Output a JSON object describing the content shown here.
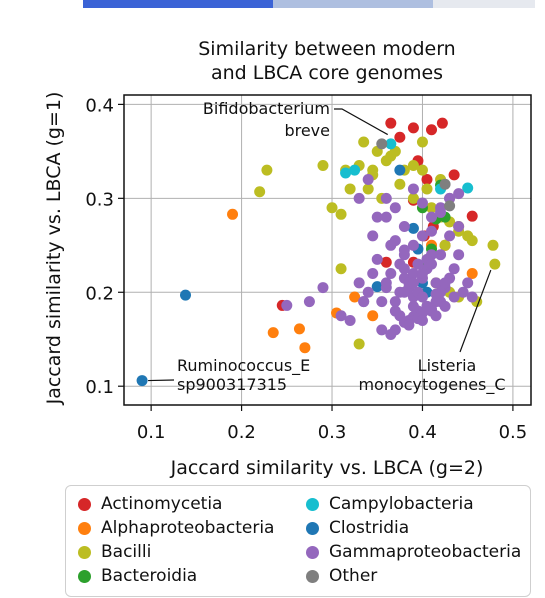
{
  "chart_data": {
    "type": "scatter",
    "title": [
      "Similarity between modern",
      "and LBCA core genomes"
    ],
    "xlabel": "Jaccard similarity vs. LBCA (g=2)",
    "ylabel": "Jaccard similarity vs. LBCA (g=1)",
    "xlim": [
      0.07,
      0.52
    ],
    "ylim": [
      0.08,
      0.41
    ],
    "xticks": [
      0.1,
      0.2,
      0.3,
      0.4,
      0.5
    ],
    "xtick_labels": [
      "0.1",
      "0.2",
      "0.3",
      "0.4",
      "0.5"
    ],
    "yticks": [
      0.1,
      0.2,
      0.3,
      0.4
    ],
    "ytick_labels": [
      "0.1",
      "0.2",
      "0.3",
      "0.4"
    ],
    "grid": true,
    "legend_position": "below",
    "annotations": [
      {
        "lines": [
          "Bifidobacterium",
          "breve"
        ],
        "point": [
          0.366,
          0.37
        ]
      },
      {
        "lines": [
          "Ruminococcus_E",
          "sp900317315"
        ],
        "point": [
          0.09,
          0.106
        ]
      },
      {
        "lines": [
          "Listeria",
          "monocytogenes_C"
        ],
        "point": [
          0.48,
          0.23
        ]
      }
    ],
    "series": [
      {
        "name": "Actinomycetia",
        "color": "#d62728",
        "x": [
          0.365,
          0.39,
          0.41,
          0.422,
          0.375,
          0.395,
          0.435,
          0.455,
          0.39,
          0.425,
          0.36,
          0.402,
          0.412,
          0.39,
          0.405,
          0.245
        ],
        "y": [
          0.38,
          0.375,
          0.373,
          0.38,
          0.365,
          0.34,
          0.325,
          0.281,
          0.232,
          0.25,
          0.232,
          0.26,
          0.27,
          0.298,
          0.32,
          0.186
        ]
      },
      {
        "name": "Alphaproteobacteria",
        "color": "#ff7f0e",
        "x": [
          0.19,
          0.235,
          0.264,
          0.27,
          0.305,
          0.325,
          0.345,
          0.41,
          0.455
        ],
        "y": [
          0.283,
          0.157,
          0.161,
          0.141,
          0.178,
          0.195,
          0.175,
          0.25,
          0.22
        ]
      },
      {
        "name": "Bacilli",
        "color": "#bcbd22",
        "x": [
          0.22,
          0.228,
          0.29,
          0.3,
          0.31,
          0.315,
          0.32,
          0.33,
          0.34,
          0.345,
          0.35,
          0.36,
          0.37,
          0.38,
          0.39,
          0.4,
          0.405,
          0.41,
          0.42,
          0.43,
          0.44,
          0.45,
          0.455,
          0.46,
          0.478,
          0.48,
          0.43,
          0.44,
          0.415,
          0.365,
          0.335,
          0.345,
          0.31,
          0.355,
          0.39,
          0.425,
          0.44,
          0.4,
          0.33,
          0.375,
          0.42
        ],
        "y": [
          0.307,
          0.33,
          0.335,
          0.29,
          0.283,
          0.33,
          0.31,
          0.335,
          0.31,
          0.325,
          0.35,
          0.34,
          0.35,
          0.33,
          0.335,
          0.33,
          0.31,
          0.29,
          0.28,
          0.275,
          0.27,
          0.26,
          0.255,
          0.19,
          0.25,
          0.23,
          0.2,
          0.195,
          0.21,
          0.345,
          0.36,
          0.33,
          0.225,
          0.3,
          0.3,
          0.25,
          0.265,
          0.36,
          0.145,
          0.315,
          0.32
        ]
      },
      {
        "name": "Bacteroidia",
        "color": "#2ca02c",
        "x": [
          0.4,
          0.42,
          0.425,
          0.41,
          0.405,
          0.415
        ],
        "y": [
          0.29,
          0.314,
          0.28,
          0.246,
          0.23,
          0.278
        ]
      },
      {
        "name": "Campylobacteria",
        "color": "#17becf",
        "x": [
          0.365,
          0.315,
          0.325,
          0.45,
          0.42
        ],
        "y": [
          0.358,
          0.327,
          0.33,
          0.311,
          0.31
        ]
      },
      {
        "name": "Clostridia",
        "color": "#1f77b4",
        "x": [
          0.09,
          0.138,
          0.35,
          0.39,
          0.395,
          0.4,
          0.405,
          0.375
        ],
        "y": [
          0.106,
          0.197,
          0.206,
          0.268,
          0.246,
          0.21,
          0.2,
          0.33
        ]
      },
      {
        "name": "Gammaproteobacteria",
        "color": "#9467bd",
        "x": [
          0.25,
          0.275,
          0.29,
          0.31,
          0.32,
          0.33,
          0.335,
          0.34,
          0.345,
          0.35,
          0.355,
          0.36,
          0.365,
          0.37,
          0.375,
          0.38,
          0.385,
          0.39,
          0.395,
          0.4,
          0.405,
          0.41,
          0.415,
          0.42,
          0.425,
          0.43,
          0.435,
          0.44,
          0.445,
          0.45,
          0.455,
          0.36,
          0.37,
          0.38,
          0.39,
          0.4,
          0.41,
          0.42,
          0.43,
          0.375,
          0.385,
          0.395,
          0.405,
          0.415,
          0.365,
          0.38,
          0.39,
          0.4,
          0.41,
          0.42,
          0.37,
          0.38,
          0.39,
          0.4,
          0.41,
          0.385,
          0.395,
          0.405,
          0.415,
          0.425,
          0.36,
          0.345,
          0.335,
          0.355,
          0.365,
          0.375,
          0.385,
          0.395,
          0.405,
          0.415,
          0.425,
          0.435,
          0.33,
          0.34,
          0.35,
          0.37,
          0.38,
          0.39,
          0.4,
          0.41,
          0.42,
          0.43,
          0.44,
          0.39,
          0.4,
          0.41,
          0.42,
          0.43,
          0.44,
          0.38,
          0.37,
          0.36,
          0.39,
          0.4,
          0.38
        ],
        "y": [
          0.186,
          0.19,
          0.205,
          0.175,
          0.17,
          0.21,
          0.19,
          0.2,
          0.22,
          0.235,
          0.19,
          0.205,
          0.22,
          0.18,
          0.23,
          0.215,
          0.205,
          0.195,
          0.2,
          0.215,
          0.225,
          0.24,
          0.21,
          0.19,
          0.205,
          0.215,
          0.225,
          0.24,
          0.2,
          0.21,
          0.195,
          0.28,
          0.29,
          0.27,
          0.25,
          0.26,
          0.265,
          0.285,
          0.3,
          0.175,
          0.17,
          0.18,
          0.185,
          0.19,
          0.25,
          0.24,
          0.22,
          0.195,
          0.18,
          0.2,
          0.16,
          0.168,
          0.174,
          0.178,
          0.182,
          0.165,
          0.172,
          0.185,
          0.198,
          0.21,
          0.3,
          0.26,
          0.19,
          0.16,
          0.155,
          0.2,
          0.21,
          0.23,
          0.235,
          0.175,
          0.185,
          0.195,
          0.3,
          0.32,
          0.28,
          0.255,
          0.245,
          0.21,
          0.22,
          0.23,
          0.24,
          0.26,
          0.27,
          0.31,
          0.295,
          0.28,
          0.29,
          0.3,
          0.305,
          0.2,
          0.19,
          0.21,
          0.185,
          0.17,
          0.225
        ]
      },
      {
        "name": "Other",
        "color": "#7f7f7f",
        "x": [
          0.355,
          0.43,
          0.425
        ],
        "y": [
          0.358,
          0.292,
          0.315
        ]
      }
    ]
  },
  "legend": {
    "items": [
      {
        "label": "Actinomycetia",
        "color": "#d62728"
      },
      {
        "label": "Alphaproteobacteria",
        "color": "#ff7f0e"
      },
      {
        "label": "Bacilli",
        "color": "#bcbd22"
      },
      {
        "label": "Bacteroidia",
        "color": "#2ca02c"
      },
      {
        "label": "Campylobacteria",
        "color": "#17becf"
      },
      {
        "label": "Clostridia",
        "color": "#1f77b4"
      },
      {
        "label": "Gammaproteobacteria",
        "color": "#9467bd"
      },
      {
        "label": "Other",
        "color": "#7f7f7f"
      }
    ]
  }
}
